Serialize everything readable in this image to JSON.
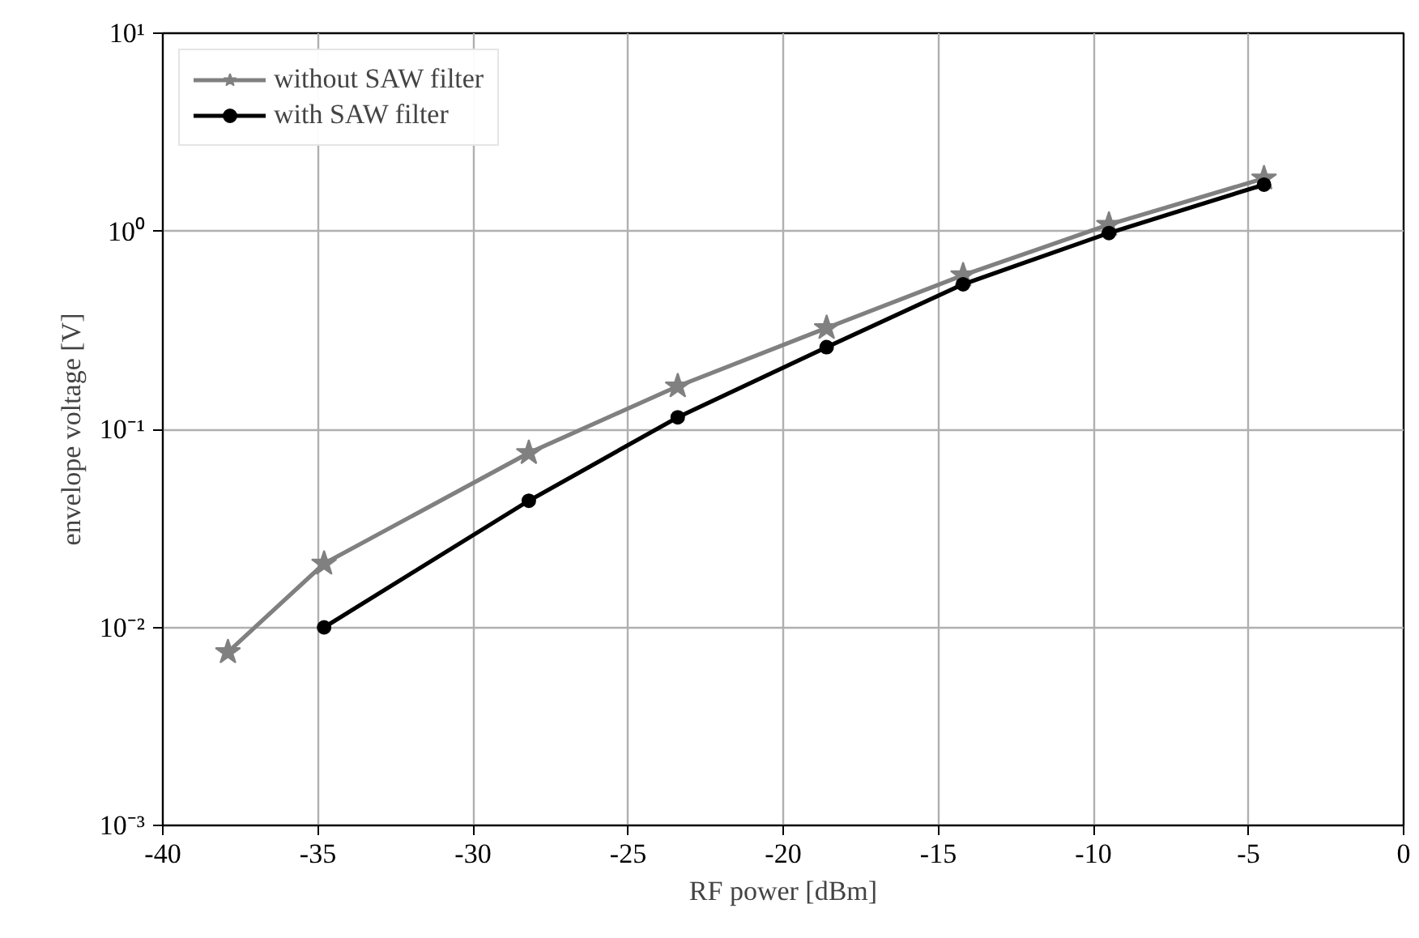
{
  "chart_data": {
    "type": "line",
    "xlabel": "RF power [dBm]",
    "ylabel": "envelope voltage [V]",
    "log": "y",
    "grid": true,
    "legend": "top left",
    "line_style": "solid",
    "xlim": [
      -40,
      0
    ],
    "xticks": [
      -40,
      -35,
      -30,
      -25,
      -20,
      -15,
      -10,
      -5,
      0
    ],
    "ylim": [
      0.001,
      10
    ],
    "yticks": [
      {
        "value": 0.001,
        "label": "10⁻³"
      },
      {
        "value": 0.01,
        "label": "10⁻²"
      },
      {
        "value": 0.1,
        "label": "10⁻¹"
      },
      {
        "value": 1,
        "label": "10⁰"
      },
      {
        "value": 10,
        "label": "10¹"
      }
    ],
    "series": [
      {
        "name": "without SAW filter",
        "color": "#808080",
        "marker": "star",
        "x": [
          -37.9,
          -34.8,
          -28.2,
          -23.4,
          -18.6,
          -14.2,
          -9.5,
          -4.5
        ],
        "values": [
          0.0075,
          0.021,
          0.076,
          0.165,
          0.325,
          0.6,
          1.08,
          1.85
        ]
      },
      {
        "name": "with SAW filter",
        "color": "#000000",
        "marker": "circle",
        "x": [
          -34.8,
          -28.2,
          -23.4,
          -18.6,
          -14.2,
          -9.5,
          -4.5
        ],
        "values": [
          0.01,
          0.0436,
          0.115,
          0.26,
          0.54,
          0.98,
          1.72
        ]
      }
    ]
  }
}
